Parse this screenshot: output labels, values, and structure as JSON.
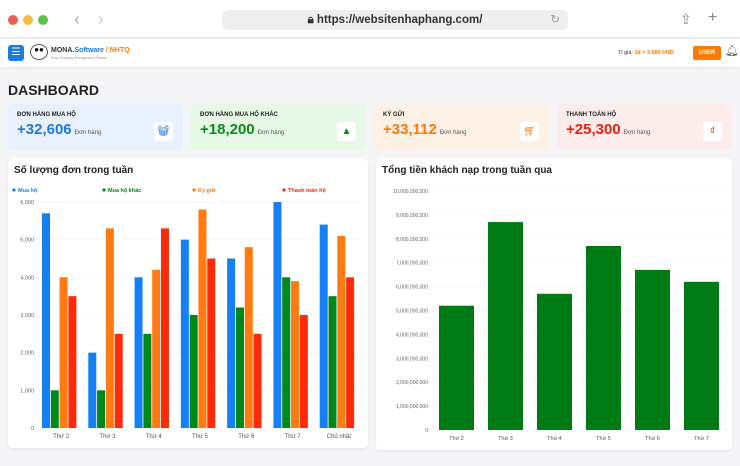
{
  "browser": {
    "url": "https://websitenhaphang.com/"
  },
  "header": {
    "brand_main": "MONA.",
    "brand_software": "Software",
    "brand_sep": " / ",
    "brand_nhtq": "NHTQ",
    "tagline": "Drop Shipping Management System",
    "rate_label": "Tỉ giá:",
    "rate_value": "1¥ = 3,580 VND",
    "user_label": "USER"
  },
  "page_title": "DASHBOARD",
  "stats": [
    {
      "title": "ĐƠN HÀNG MUA HỘ",
      "value": "+32,606",
      "unit": "Đơn hàng",
      "color": "#1e7ae0",
      "bg": "#e8f1fd",
      "icon": "basket-icon"
    },
    {
      "title": "ĐƠN HÀNG MUA HỘ KHÁC",
      "value": "+18,200",
      "unit": "Đơn hàng",
      "color": "#0a8a16",
      "bg": "#e5f9e6",
      "icon": "boxes-icon"
    },
    {
      "title": "KÝ GỬI",
      "value": "+33,112",
      "unit": "Đơn hàng",
      "color": "#ff7a00",
      "bg": "#fdf1e6",
      "icon": "cart-icon"
    },
    {
      "title": "THANH TOÁN HỘ",
      "value": "+25,300",
      "unit": "Đơn hàng",
      "color": "#f0200a",
      "bg": "#fdecec",
      "icon": "payment-icon"
    }
  ],
  "chart_data": [
    {
      "type": "bar",
      "title": "Số lượng đơn trong tuần",
      "legend": "top",
      "grid": true,
      "categories": [
        "Thứ 2",
        "Thứ 3",
        "Thứ 4",
        "Thứ 5",
        "Thứ 6",
        "Thứ 7",
        "Chủ nhật"
      ],
      "ylim": [
        0,
        6000
      ],
      "yticks": [
        "0",
        "1,000",
        "2,000",
        "3,000",
        "4,000",
        "5,000",
        "6,000"
      ],
      "series": [
        {
          "name": "Mua hộ",
          "color": "#1580f5",
          "values": [
            5700,
            2000,
            4000,
            5000,
            4500,
            6000,
            5400
          ]
        },
        {
          "name": "Mua hộ khác",
          "color": "#00881a",
          "values": [
            1000,
            1000,
            2500,
            3000,
            3200,
            4000,
            3500
          ]
        },
        {
          "name": "Ký gửi",
          "color": "#ff7a10",
          "values": [
            4000,
            5300,
            4200,
            5800,
            4800,
            3900,
            5100
          ]
        },
        {
          "name": "Thanh toán hộ",
          "color": "#ff2a0a",
          "values": [
            3500,
            2500,
            5300,
            4500,
            2500,
            3000,
            4000
          ]
        }
      ]
    },
    {
      "type": "bar",
      "title": "Tổng tiền khách nạp trong tuần qua",
      "grid": true,
      "categories": [
        "Thứ 2",
        "Thứ 3",
        "Thứ 4",
        "Thứ 5",
        "Thứ 6",
        "Thứ 7"
      ],
      "ylim": [
        0,
        10000000000
      ],
      "yticks": [
        "0",
        "1,000,000,000",
        "2,000,000,000",
        "3,000,000,000",
        "4,000,000,000",
        "5,000,000,000",
        "6,000,000,000",
        "7,000,000,000",
        "8,000,000,000",
        "9,000,000,000",
        "10,000,000,000"
      ],
      "series": [
        {
          "color": "#007a14",
          "values": [
            5200000000,
            8700000000,
            5700000000,
            7700000000,
            6700000000,
            6200000000
          ]
        }
      ]
    }
  ]
}
